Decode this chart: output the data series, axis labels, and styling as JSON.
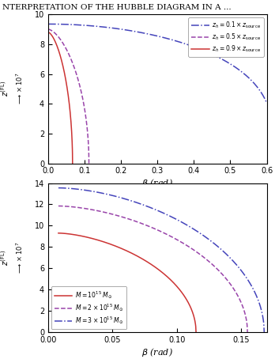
{
  "title": "NTERPRETATION OF THE HUBBLE DIAGRAM IN A ...",
  "top_plot": {
    "xlabel": "$\\beta$ (rad)",
    "xlim": [
      0.0,
      0.6
    ],
    "ylim": [
      0,
      10
    ],
    "xticks": [
      0.0,
      0.1,
      0.2,
      0.3,
      0.4,
      0.5,
      0.6
    ],
    "yticks": [
      0,
      2,
      4,
      6,
      8,
      10
    ],
    "curves": [
      {
        "label": "$z_h = 0.1 \\times z_{\\mathrm{source}}$",
        "color": "#4444bb",
        "ls": "dashdot",
        "beta_end": 0.6,
        "y0": 9.35,
        "power": 0.28,
        "scale": 0.62
      },
      {
        "label": "$z_h = 0.5 \\times z_{\\mathrm{source}}$",
        "color": "#9944aa",
        "ls": "dashed",
        "beta_end": 0.112,
        "y0": 9.0,
        "power": 1.6,
        "scale": 1.0
      },
      {
        "label": "$z_h = 0.9 \\times z_{\\mathrm{source}}$",
        "color": "#cc3333",
        "ls": "solid",
        "beta_end": 0.067,
        "y0": 8.8,
        "power": 1.6,
        "scale": 1.0
      }
    ]
  },
  "bottom_plot": {
    "xlabel": "$\\beta$ (rad)",
    "xlim": [
      0.0,
      0.17
    ],
    "ylim": [
      0,
      14
    ],
    "xticks": [
      0.0,
      0.05,
      0.1,
      0.15
    ],
    "yticks": [
      0,
      2,
      4,
      6,
      8,
      10,
      12,
      14
    ],
    "curves": [
      {
        "label": "$M = 10^{15}\\,M_\\odot$",
        "color": "#cc3333",
        "ls": "solid",
        "beta_start": 0.008,
        "beta_end": 0.115,
        "y0": 9.3,
        "power": 1.6
      },
      {
        "label": "$M = 2\\times 10^{15}\\,M_\\odot$",
        "color": "#9944aa",
        "ls": "dashed",
        "beta_start": 0.008,
        "beta_end": 0.155,
        "y0": 11.85,
        "power": 1.65
      },
      {
        "label": "$M = 3\\times 10^{15}\\,M_\\odot$",
        "color": "#4444bb",
        "ls": "dashdot",
        "beta_start": 0.008,
        "beta_end": 0.168,
        "y0": 13.55,
        "power": 1.7
      }
    ]
  },
  "bg_color": "#ffffff",
  "plot_bg": "#ffffff"
}
